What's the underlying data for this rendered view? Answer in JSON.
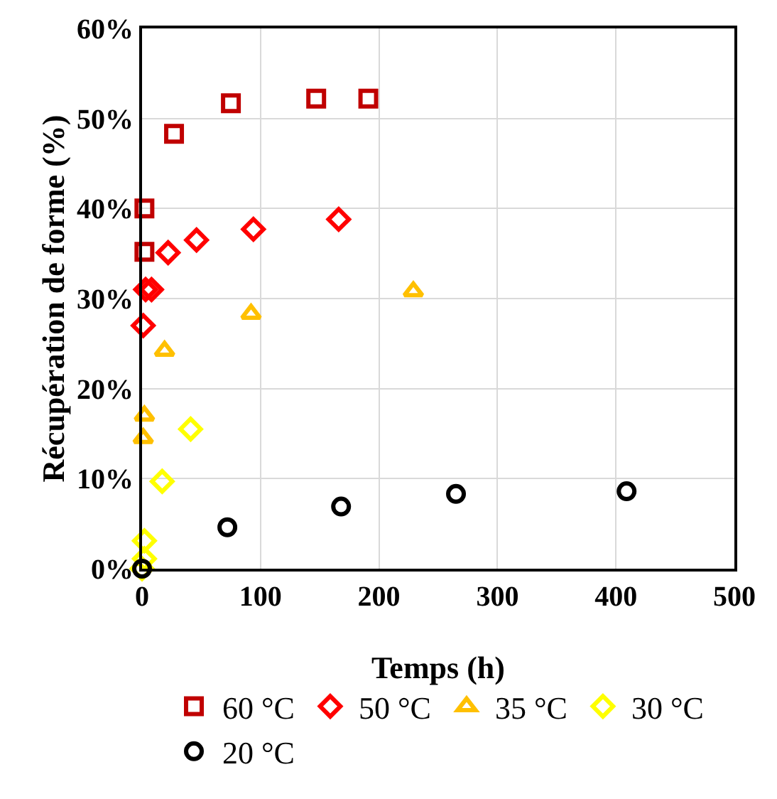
{
  "chart_data": {
    "type": "scatter",
    "xlabel": "Temps (h)",
    "ylabel": "Récupération de forme (%)",
    "xlim": [
      0,
      500
    ],
    "xticks": [
      0,
      100,
      200,
      300,
      400,
      500
    ],
    "ylim": [
      0,
      60
    ],
    "yticks": [
      {
        "value": 0,
        "label": "0%"
      },
      {
        "value": 10,
        "label": "10%"
      },
      {
        "value": 20,
        "label": "20%"
      },
      {
        "value": 30,
        "label": "30%"
      },
      {
        "value": 40,
        "label": "40%"
      },
      {
        "value": 50,
        "label": "50%"
      },
      {
        "value": 60,
        "label": "60%"
      }
    ],
    "grid": true,
    "legend": "bottom",
    "series": [
      {
        "name": "60 °C",
        "color": "#c00000",
        "marker": "square",
        "x": [
          2,
          2,
          27,
          75,
          147,
          191
        ],
        "values": [
          35.2,
          40,
          48.3,
          51.7,
          52.2,
          52.2
        ]
      },
      {
        "name": "50 °C",
        "color": "#ff0000",
        "marker": "diamond",
        "x": [
          1,
          3,
          8,
          22,
          46,
          94,
          166
        ],
        "values": [
          27,
          31,
          31,
          35.1,
          36.5,
          37.7,
          38.8
        ]
      },
      {
        "name": "35 °C",
        "color": "#ffc000",
        "marker": "triangle",
        "x": [
          1,
          2,
          19,
          92,
          229
        ],
        "values": [
          14.5,
          17,
          24.2,
          28.3,
          30.8
        ]
      },
      {
        "name": "30 °C",
        "color": "#ffff00",
        "marker": "diamond",
        "x": [
          0,
          2,
          2,
          17,
          41
        ],
        "values": [
          0,
          1.1,
          3.1,
          9.7,
          15.5
        ]
      },
      {
        "name": "20 °C",
        "color": "#000000",
        "marker": "circle",
        "x": [
          0,
          72,
          168,
          265,
          409
        ],
        "values": [
          0,
          4.6,
          6.9,
          8.3,
          8.6
        ]
      }
    ]
  }
}
